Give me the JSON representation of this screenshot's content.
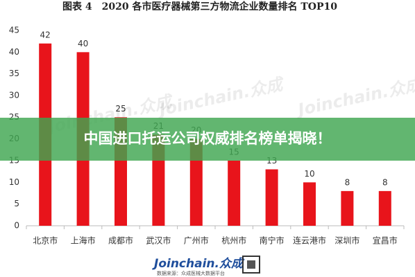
{
  "chart_data": {
    "type": "bar",
    "title": "图表 4　2020 各市医疗器械第三方物流企业数量排名 TOP10",
    "categories": [
      "北京市",
      "上海市",
      "成都市",
      "武汉市",
      "广州市",
      "杭州市",
      "南宁市",
      "连云港市",
      "深圳市",
      "宜昌市"
    ],
    "values": [
      42,
      40,
      25,
      21,
      20,
      15,
      13,
      10,
      8,
      8
    ],
    "color": "#e8141b",
    "ylim": [
      0,
      45
    ],
    "yticks": [
      0,
      5,
      10,
      15,
      20,
      25,
      30,
      35,
      40,
      45
    ],
    "grid": false
  },
  "watermark": "Joinchain.众成",
  "banner": "中国进口托运公司权威排名榜单揭晓！",
  "footer": {
    "logo": "Joinchain.众成",
    "source": "数据来源：众成医械大数据平台"
  }
}
